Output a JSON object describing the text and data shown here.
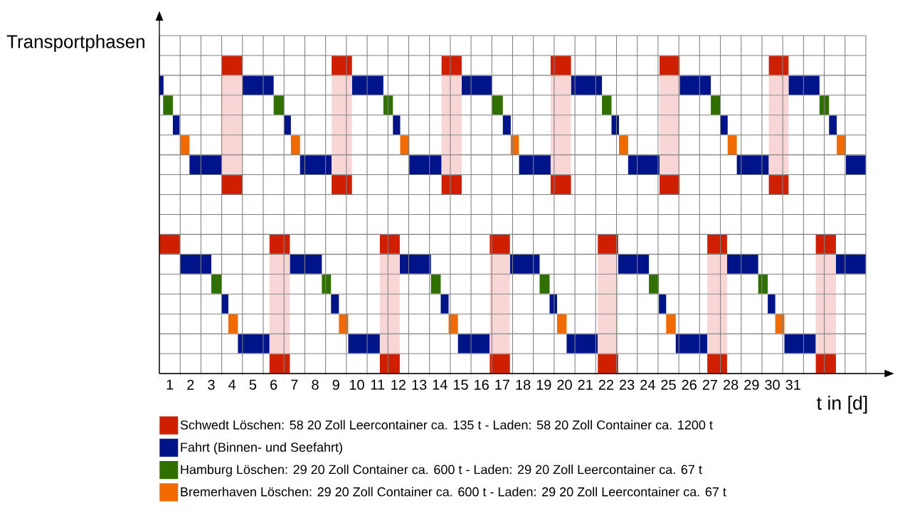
{
  "chart_data": {
    "type": "bar",
    "orientation": "horizontal",
    "ylabel": "Transportphasen",
    "xlabel": "t in [d]",
    "categories": [
      null,
      null,
      null,
      null,
      null,
      null,
      null,
      null,
      null,
      null,
      null,
      null,
      null,
      null,
      null,
      null,
      null
    ],
    "tick_labels": "x",
    "grid": true,
    "legend": "bottom",
    "xlim": [
      0,
      34
    ],
    "xticks": [
      {
        "value": 0,
        "label": null
      },
      {
        "value": 0.5,
        "label": "1"
      },
      {
        "value": 1,
        "label": null
      },
      {
        "value": 1.5,
        "label": "2"
      },
      {
        "value": 2,
        "label": null
      },
      {
        "value": 2.5,
        "label": "3"
      },
      {
        "value": 3,
        "label": null
      },
      {
        "value": 3.5,
        "label": "4"
      },
      {
        "value": 4,
        "label": null
      },
      {
        "value": 4.5,
        "label": "5"
      },
      {
        "value": 5,
        "label": null
      },
      {
        "value": 5.5,
        "label": "6"
      },
      {
        "value": 6,
        "label": null
      },
      {
        "value": 6.5,
        "label": "7"
      },
      {
        "value": 7,
        "label": null
      },
      {
        "value": 7.5,
        "label": "8"
      },
      {
        "value": 8,
        "label": null
      },
      {
        "value": 8.5,
        "label": "9"
      },
      {
        "value": 9,
        "label": null
      },
      {
        "value": 9.5,
        "label": "10"
      },
      {
        "value": 10,
        "label": null
      },
      {
        "value": 10.5,
        "label": "11"
      },
      {
        "value": 11,
        "label": null
      },
      {
        "value": 11.5,
        "label": "12"
      },
      {
        "value": 12,
        "label": null
      },
      {
        "value": 12.5,
        "label": "13"
      },
      {
        "value": 13,
        "label": null
      },
      {
        "value": 13.5,
        "label": "14"
      },
      {
        "value": 14,
        "label": null
      },
      {
        "value": 14.5,
        "label": "15"
      },
      {
        "value": 15,
        "label": null
      },
      {
        "value": 15.5,
        "label": "16"
      },
      {
        "value": 16,
        "label": null
      },
      {
        "value": 16.5,
        "label": "17"
      },
      {
        "value": 17,
        "label": null
      },
      {
        "value": 17.5,
        "label": "18"
      },
      {
        "value": 18,
        "label": null
      },
      {
        "value": 18.5,
        "label": "19"
      },
      {
        "value": 19,
        "label": null
      },
      {
        "value": 19.5,
        "label": "20"
      },
      {
        "value": 20,
        "label": null
      },
      {
        "value": 20.5,
        "label": "21"
      },
      {
        "value": 21,
        "label": null
      },
      {
        "value": 21.5,
        "label": "22"
      },
      {
        "value": 22,
        "label": null
      },
      {
        "value": 22.5,
        "label": "23"
      },
      {
        "value": 23,
        "label": null
      },
      {
        "value": 23.5,
        "label": "24"
      },
      {
        "value": 24,
        "label": null
      },
      {
        "value": 24.5,
        "label": "25"
      },
      {
        "value": 25,
        "label": null
      },
      {
        "value": 25.5,
        "label": "26"
      },
      {
        "value": 26,
        "label": null
      },
      {
        "value": 26.5,
        "label": "27"
      },
      {
        "value": 27,
        "label": null
      },
      {
        "value": 27.5,
        "label": "28"
      },
      {
        "value": 28,
        "label": null
      },
      {
        "value": 28.5,
        "label": "29"
      },
      {
        "value": 29,
        "label": null
      },
      {
        "value": 29.5,
        "label": "30"
      },
      {
        "value": 30,
        "label": null
      },
      {
        "value": 30.5,
        "label": "31"
      },
      {
        "value": 31,
        "label": null
      },
      {
        "value": 32,
        "label": null
      },
      {
        "value": 33,
        "label": null
      },
      {
        "value": 34,
        "label": null
      }
    ],
    "series": [
      {
        "name": "Schwedt Löschen: 58 20 Zoll Leercontainer ca. 135 t - Laden: 58 20 Zoll Container ca. 1200 t",
        "color": "#d01e00",
        "base": [
          null,
          null,
          null,
          null,
          null,
          null,
          null,
          null,
          null,
          null,
          0,
          null,
          null,
          null,
          null,
          null,
          null
        ],
        "values": [
          null,
          null,
          null,
          null,
          null,
          null,
          null,
          null,
          null,
          null,
          0.99,
          null,
          null,
          null,
          null,
          null,
          null
        ]
      },
      {
        "color": "#d01e00",
        "base": [
          null,
          3,
          null,
          null,
          null,
          null,
          null,
          3,
          null,
          null,
          5.3,
          null,
          null,
          null,
          null,
          null,
          5.3
        ],
        "values": [
          null,
          1,
          null,
          null,
          null,
          null,
          null,
          1,
          null,
          null,
          0.98,
          null,
          null,
          null,
          null,
          null,
          0.98
        ]
      },
      {
        "color": "#d01e00",
        "base": [
          null,
          8.29,
          null,
          null,
          null,
          null,
          null,
          8.29,
          null,
          null,
          10.61,
          null,
          null,
          null,
          null,
          null,
          10.61
        ],
        "values": [
          null,
          0.98,
          null,
          null,
          null,
          null,
          null,
          0.98,
          null,
          null,
          0.96,
          null,
          null,
          null,
          null,
          null,
          0.96
        ]
      },
      {
        "color": "#d01e00",
        "base": [
          null,
          13.58,
          null,
          null,
          null,
          null,
          null,
          13.58,
          null,
          null,
          15.9,
          null,
          null,
          null,
          null,
          null,
          15.9
        ],
        "values": [
          null,
          0.97,
          null,
          null,
          null,
          null,
          null,
          0.97,
          null,
          null,
          0.97,
          null,
          null,
          null,
          null,
          null,
          0.97
        ]
      },
      {
        "color": "#d01e00",
        "base": [
          null,
          18.83,
          null,
          null,
          null,
          null,
          null,
          18.83,
          null,
          null,
          21.1,
          null,
          null,
          null,
          null,
          null,
          21.1
        ],
        "values": [
          null,
          0.98,
          null,
          null,
          null,
          null,
          null,
          0.98,
          null,
          null,
          0.98,
          null,
          null,
          null,
          null,
          null,
          0.98
        ]
      },
      {
        "color": "#d01e00",
        "base": [
          null,
          24.07,
          null,
          null,
          null,
          null,
          null,
          24.07,
          null,
          null,
          26.37,
          null,
          null,
          null,
          null,
          null,
          26.37
        ],
        "values": [
          null,
          0.97,
          null,
          null,
          null,
          null,
          null,
          0.97,
          null,
          null,
          0.95,
          null,
          null,
          null,
          null,
          null,
          0.95
        ]
      },
      {
        "color": "#d01e00",
        "base": [
          null,
          29.33,
          null,
          null,
          null,
          null,
          null,
          29.33,
          null,
          null,
          31.59,
          null,
          null,
          null,
          null,
          null,
          31.59
        ],
        "values": [
          null,
          0.95,
          null,
          null,
          null,
          null,
          null,
          0.95,
          null,
          null,
          0.97,
          null,
          null,
          null,
          null,
          null,
          0.97
        ]
      },
      {
        "name": "Fahrt (Binnen- und Seefahrt)",
        "color": "#00148a",
        "base": [
          null,
          null,
          0,
          null,
          0.65,
          null,
          1.45,
          null,
          null,
          null,
          null,
          0.99,
          null,
          2.98,
          null,
          3.78,
          null
        ],
        "values": [
          null,
          null,
          0.2,
          null,
          0.32,
          null,
          1.55,
          null,
          null,
          null,
          null,
          1.51,
          null,
          0.34,
          null,
          1.52,
          null
        ]
      },
      {
        "color": "#00148a",
        "base": [
          null,
          null,
          4,
          null,
          6,
          null,
          6.77,
          null,
          null,
          null,
          null,
          6.28,
          null,
          8.26,
          null,
          9.09,
          null
        ],
        "values": [
          null,
          null,
          1.5,
          null,
          0.33,
          null,
          1.52,
          null,
          null,
          null,
          null,
          1.54,
          null,
          0.38,
          null,
          1.52,
          null
        ]
      },
      {
        "color": "#00148a",
        "base": [
          null,
          null,
          9.27,
          null,
          11.24,
          null,
          12.03,
          null,
          null,
          null,
          null,
          11.57,
          null,
          13.54,
          null,
          14.37,
          null
        ],
        "values": [
          null,
          null,
          1.51,
          null,
          0.35,
          null,
          1.55,
          null,
          null,
          null,
          null,
          1.5,
          null,
          0.38,
          null,
          1.53,
          null
        ]
      },
      {
        "color": "#00148a",
        "base": [
          null,
          null,
          14.55,
          null,
          16.53,
          null,
          17.31,
          null,
          null,
          null,
          null,
          16.87,
          null,
          18.78,
          null,
          19.6,
          null
        ],
        "values": [
          null,
          null,
          1.47,
          null,
          0.38,
          null,
          1.52,
          null,
          null,
          null,
          null,
          1.43,
          null,
          0.36,
          null,
          1.5,
          null
        ]
      },
      {
        "color": "#00148a",
        "base": [
          null,
          null,
          19.81,
          null,
          21.76,
          null,
          22.56,
          null,
          null,
          null,
          null,
          22.08,
          null,
          24.04,
          null,
          24.85,
          null
        ],
        "values": [
          null,
          null,
          1.49,
          null,
          0.36,
          null,
          1.51,
          null,
          null,
          null,
          null,
          1.48,
          null,
          0.35,
          null,
          1.52,
          null
        ]
      },
      {
        "color": "#00148a",
        "base": [
          null,
          null,
          25.04,
          null,
          26.99,
          null,
          27.79,
          null,
          null,
          null,
          null,
          27.32,
          null,
          29.28,
          null,
          30.08,
          null
        ],
        "values": [
          null,
          null,
          1.5,
          null,
          0.36,
          null,
          1.54,
          null,
          null,
          null,
          null,
          1.5,
          null,
          0.36,
          null,
          1.51,
          null
        ]
      },
      {
        "color": "#00148a",
        "base": [
          null,
          null,
          30.28,
          null,
          32.23,
          null,
          33.04,
          null,
          null,
          null,
          null,
          32.56,
          null,
          null,
          null,
          null,
          null
        ],
        "values": [
          null,
          null,
          1.49,
          null,
          0.37,
          null,
          0.96,
          null,
          null,
          null,
          null,
          1.44,
          null,
          null,
          null,
          null,
          null
        ]
      },
      {
        "name": "Hamburg Löschen: 29 20 Zoll Container ca. 600 t - Laden: 29 20 Zoll Leercontainer ca. 67 t",
        "color": "#2f7000",
        "base": [
          null,
          null,
          null,
          0.18,
          null,
          null,
          null,
          null,
          null,
          null,
          null,
          null,
          2.5,
          null,
          null,
          null,
          null
        ],
        "values": [
          null,
          null,
          null,
          0.47,
          null,
          null,
          null,
          null,
          null,
          null,
          null,
          null,
          0.48,
          null,
          null,
          null,
          null
        ]
      },
      {
        "color": "#2f7000",
        "base": [
          null,
          null,
          null,
          5.5,
          null,
          null,
          null,
          null,
          null,
          null,
          null,
          null,
          7.82,
          null,
          null,
          null,
          null
        ],
        "values": [
          null,
          null,
          null,
          0.5,
          null,
          null,
          null,
          null,
          null,
          null,
          null,
          null,
          0.44,
          null,
          null,
          null,
          null
        ]
      },
      {
        "color": "#2f7000",
        "base": [
          null,
          null,
          null,
          10.78,
          null,
          null,
          null,
          null,
          null,
          null,
          null,
          null,
          13.07,
          null,
          null,
          null,
          null
        ],
        "values": [
          null,
          null,
          null,
          0.46,
          null,
          null,
          null,
          null,
          null,
          null,
          null,
          null,
          0.47,
          null,
          null,
          null,
          null
        ]
      },
      {
        "color": "#2f7000",
        "base": [
          null,
          null,
          null,
          16.02,
          null,
          null,
          null,
          null,
          null,
          null,
          null,
          null,
          18.3,
          null,
          null,
          null,
          null
        ],
        "values": [
          null,
          null,
          null,
          0.51,
          null,
          null,
          null,
          null,
          null,
          null,
          null,
          null,
          0.48,
          null,
          null,
          null,
          null
        ]
      },
      {
        "color": "#2f7000",
        "base": [
          null,
          null,
          null,
          21.3,
          null,
          null,
          null,
          null,
          null,
          null,
          null,
          null,
          23.56,
          null,
          null,
          null,
          null
        ],
        "values": [
          null,
          null,
          null,
          0.46,
          null,
          null,
          null,
          null,
          null,
          null,
          null,
          null,
          0.48,
          null,
          null,
          null,
          null
        ]
      },
      {
        "color": "#2f7000",
        "base": [
          null,
          null,
          null,
          26.54,
          null,
          null,
          null,
          null,
          null,
          null,
          null,
          null,
          28.82,
          null,
          null,
          null,
          null
        ],
        "values": [
          null,
          null,
          null,
          0.45,
          null,
          null,
          null,
          null,
          null,
          null,
          null,
          null,
          0.46,
          null,
          null,
          null,
          null
        ]
      },
      {
        "color": "#2f7000",
        "base": [
          null,
          null,
          null,
          31.77,
          null,
          null,
          null,
          null,
          null,
          null,
          null,
          null,
          null,
          null,
          null,
          null,
          null
        ],
        "values": [
          null,
          null,
          null,
          0.46,
          null,
          null,
          null,
          null,
          null,
          null,
          null,
          null,
          null,
          null,
          null,
          null,
          null
        ]
      },
      {
        "name": "Bremerhaven Löschen: 29 20 Zoll Container ca. 600 t - Laden: 29 20 Zoll Leercontainer ca. 67 t",
        "color": "#f06a00",
        "base": [
          null,
          null,
          null,
          null,
          null,
          0.99,
          null,
          null,
          null,
          null,
          null,
          null,
          null,
          null,
          3.32,
          null,
          null
        ],
        "values": [
          null,
          null,
          null,
          null,
          null,
          0.46,
          null,
          null,
          null,
          null,
          null,
          null,
          null,
          null,
          0.46,
          null,
          null
        ]
      },
      {
        "color": "#f06a00",
        "base": [
          null,
          null,
          null,
          null,
          null,
          6.33,
          null,
          null,
          null,
          null,
          null,
          null,
          null,
          null,
          8.64,
          null,
          null
        ],
        "values": [
          null,
          null,
          null,
          null,
          null,
          0.44,
          null,
          null,
          null,
          null,
          null,
          null,
          null,
          null,
          0.45,
          null,
          null
        ]
      },
      {
        "color": "#f06a00",
        "base": [
          null,
          null,
          null,
          null,
          null,
          11.59,
          null,
          null,
          null,
          null,
          null,
          null,
          null,
          null,
          13.92,
          null,
          null
        ],
        "values": [
          null,
          null,
          null,
          null,
          null,
          0.44,
          null,
          null,
          null,
          null,
          null,
          null,
          null,
          null,
          0.45,
          null,
          null
        ]
      },
      {
        "color": "#f06a00",
        "base": [
          null,
          null,
          null,
          null,
          null,
          16.91,
          null,
          null,
          null,
          null,
          null,
          null,
          null,
          null,
          19.14,
          null,
          null
        ],
        "values": [
          null,
          null,
          null,
          null,
          null,
          0.39,
          null,
          null,
          null,
          null,
          null,
          null,
          null,
          null,
          0.46,
          null,
          null
        ]
      },
      {
        "color": "#f06a00",
        "base": [
          null,
          null,
          null,
          null,
          null,
          22.12,
          null,
          null,
          null,
          null,
          null,
          null,
          null,
          null,
          24.39,
          null,
          null
        ],
        "values": [
          null,
          null,
          null,
          null,
          null,
          0.44,
          null,
          null,
          null,
          null,
          null,
          null,
          null,
          null,
          0.46,
          null,
          null
        ]
      },
      {
        "color": "#f06a00",
        "base": [
          null,
          null,
          null,
          null,
          null,
          27.35,
          null,
          null,
          null,
          null,
          null,
          null,
          null,
          null,
          29.64,
          null,
          null
        ],
        "values": [
          null,
          null,
          null,
          null,
          null,
          0.44,
          null,
          null,
          null,
          null,
          null,
          null,
          null,
          null,
          0.44,
          null,
          null
        ]
      },
      {
        "color": "#f06a00",
        "base": [
          null,
          null,
          null,
          null,
          null,
          32.6,
          null,
          null,
          null,
          null,
          null,
          null,
          null,
          null,
          null,
          null,
          null
        ],
        "values": [
          null,
          null,
          null,
          null,
          null,
          0.44,
          null,
          null,
          null,
          null,
          null,
          null,
          null,
          null,
          null,
          null,
          null
        ]
      },
      {
        "color": "#f8d6d6",
        "base": [
          null,
          null,
          3,
          3,
          3,
          3,
          3,
          null,
          null,
          null,
          null,
          5.3,
          5.3,
          5.3,
          5.3,
          5.3,
          null
        ],
        "values": [
          null,
          null,
          1,
          1,
          1,
          1,
          1,
          null,
          null,
          null,
          null,
          0.98,
          0.98,
          0.98,
          0.98,
          0.98,
          null
        ]
      },
      {
        "color": "#f8d6d6",
        "base": [
          null,
          null,
          8.29,
          8.29,
          8.29,
          8.29,
          8.29,
          null,
          null,
          null,
          null,
          10.61,
          10.61,
          10.61,
          10.61,
          10.61,
          null
        ],
        "values": [
          null,
          null,
          0.98,
          0.98,
          0.98,
          0.98,
          0.98,
          null,
          null,
          null,
          null,
          0.96,
          0.96,
          0.96,
          0.96,
          0.96,
          null
        ]
      },
      {
        "color": "#f8d6d6",
        "base": [
          null,
          null,
          13.58,
          13.58,
          13.58,
          13.58,
          13.58,
          null,
          null,
          null,
          null,
          15.9,
          15.9,
          15.9,
          15.9,
          15.9,
          null
        ],
        "values": [
          null,
          null,
          0.97,
          0.97,
          0.97,
          0.97,
          0.97,
          null,
          null,
          null,
          null,
          0.97,
          0.97,
          0.97,
          0.97,
          0.97,
          null
        ]
      },
      {
        "color": "#f8d6d6",
        "base": [
          null,
          null,
          18.83,
          18.83,
          18.83,
          18.83,
          18.83,
          null,
          null,
          null,
          null,
          21.1,
          21.1,
          21.1,
          21.1,
          21.1,
          null
        ],
        "values": [
          null,
          null,
          0.98,
          0.98,
          0.98,
          0.98,
          0.98,
          null,
          null,
          null,
          null,
          0.98,
          0.98,
          0.98,
          0.98,
          0.98,
          null
        ]
      },
      {
        "color": "#f8d6d6",
        "base": [
          null,
          null,
          24.07,
          24.07,
          24.07,
          24.07,
          24.07,
          null,
          null,
          null,
          null,
          26.37,
          26.37,
          26.37,
          26.37,
          26.37,
          null
        ],
        "values": [
          null,
          null,
          0.97,
          0.97,
          0.97,
          0.97,
          0.97,
          null,
          null,
          null,
          null,
          0.95,
          0.95,
          0.95,
          0.95,
          0.95,
          null
        ]
      },
      {
        "color": "#f8d6d6",
        "base": [
          null,
          null,
          29.33,
          29.33,
          29.33,
          29.33,
          29.33,
          null,
          null,
          null,
          null,
          31.59,
          31.59,
          31.59,
          31.59,
          31.59,
          null
        ],
        "values": [
          null,
          null,
          0.95,
          0.95,
          0.95,
          0.95,
          0.95,
          null,
          null,
          null,
          null,
          0.97,
          0.97,
          0.97,
          0.97,
          0.97,
          null
        ]
      }
    ]
  }
}
